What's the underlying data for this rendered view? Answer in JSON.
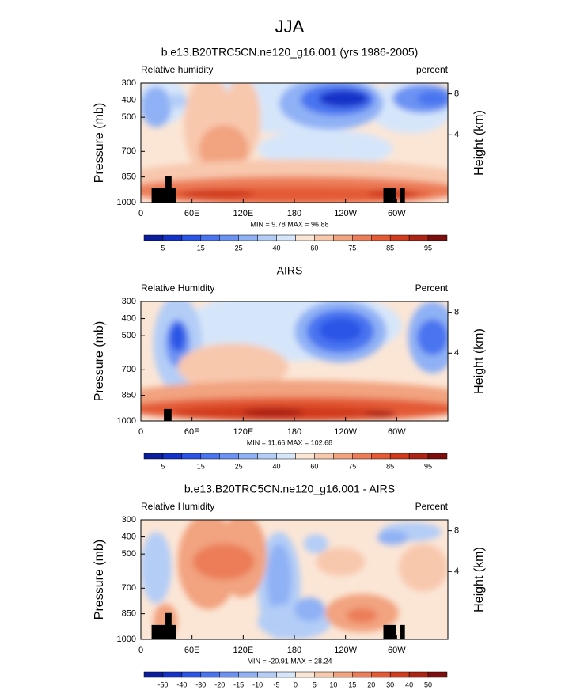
{
  "title": "JJA",
  "chart_data": [
    {
      "type": "contour",
      "title": "b.e13.B20TRC5CN.ne120_g16.001 (yrs 1986-2005)",
      "left_string": "Relative humidity",
      "right_string": "percent",
      "ylabel": "Pressure (mb)",
      "y2label": "Height (km)",
      "ylim": [
        1000,
        300
      ],
      "yticks": [
        300,
        400,
        500,
        700,
        850,
        1000
      ],
      "y2ticks": [
        4,
        8
      ],
      "xlim": [
        0,
        360
      ],
      "xticks": [
        0,
        {
          "value": 60,
          "label": "60E"
        },
        {
          "value": 120,
          "label": "120E"
        },
        180,
        {
          "value": 240,
          "label": "120W"
        },
        {
          "value": 300,
          "label": "60W"
        }
      ],
      "annotation": "MIN = 9.78  MAX = 96.88",
      "levels": [
        5,
        null,
        15,
        null,
        25,
        null,
        40,
        null,
        60,
        null,
        75,
        null,
        85,
        null,
        95
      ],
      "colors": [
        "#0a1d9c",
        "#1432c8",
        "#2a54e6",
        "#4a74f0",
        "#6c93f3",
        "#8fb1f5",
        "#b3cdf7",
        "#d6e6fa",
        "#fbe6d6",
        "#f8c8ad",
        "#f2a37f",
        "#ec7d58",
        "#e35a35",
        "#d13b1c",
        "#ad2414",
        "#7e0e0e"
      ]
    },
    {
      "type": "contour",
      "title": "AIRS",
      "left_string": "Relative Humidity",
      "right_string": "Percent",
      "ylabel": "Pressure (mb)",
      "y2label": "Height (km)",
      "ylim": [
        1000,
        300
      ],
      "yticks": [
        300,
        400,
        500,
        700,
        850,
        1000
      ],
      "y2ticks": [
        4,
        8
      ],
      "xlim": [
        0,
        360
      ],
      "xticks": [
        0,
        {
          "value": 60,
          "label": "60E"
        },
        {
          "value": 120,
          "label": "120E"
        },
        180,
        {
          "value": 240,
          "label": "120W"
        },
        {
          "value": 300,
          "label": "60W"
        }
      ],
      "annotation": "MIN = 11.66  MAX = 102.68",
      "levels": [
        5,
        null,
        15,
        null,
        25,
        null,
        40,
        null,
        60,
        null,
        75,
        null,
        85,
        null,
        95
      ],
      "colors": [
        "#0a1d9c",
        "#1432c8",
        "#2a54e6",
        "#4a74f0",
        "#6c93f3",
        "#8fb1f5",
        "#b3cdf7",
        "#d6e6fa",
        "#fbe6d6",
        "#f8c8ad",
        "#f2a37f",
        "#ec7d58",
        "#e35a35",
        "#d13b1c",
        "#ad2414",
        "#7e0e0e"
      ]
    },
    {
      "type": "contour",
      "title": "b.e13.B20TRC5CN.ne120_g16.001 - AIRS",
      "left_string": "Relative Humidity",
      "right_string": "Percent",
      "ylabel": "Pressure (mb)",
      "y2label": "Height (km)",
      "ylim": [
        1000,
        300
      ],
      "yticks": [
        300,
        400,
        500,
        700,
        850,
        1000
      ],
      "y2ticks": [
        4,
        8
      ],
      "xlim": [
        0,
        360
      ],
      "xticks": [
        0,
        {
          "value": 60,
          "label": "60E"
        },
        {
          "value": 120,
          "label": "120E"
        },
        180,
        {
          "value": 240,
          "label": "120W"
        },
        {
          "value": 300,
          "label": "60W"
        }
      ],
      "annotation": "MIN = -20.91  MAX = 28.24",
      "levels": [
        -50,
        -40,
        -30,
        -20,
        -15,
        -10,
        -5,
        0,
        5,
        10,
        15,
        20,
        30,
        40,
        50
      ],
      "colors": [
        "#0a1d9c",
        "#1432c8",
        "#2a54e6",
        "#4a74f0",
        "#6c93f3",
        "#8fb1f5",
        "#b3cdf7",
        "#d6e6fa",
        "#fbe6d6",
        "#f8c8ad",
        "#f2a37f",
        "#ec7d58",
        "#e35a35",
        "#d13b1c",
        "#ad2414",
        "#7e0e0e"
      ]
    }
  ]
}
